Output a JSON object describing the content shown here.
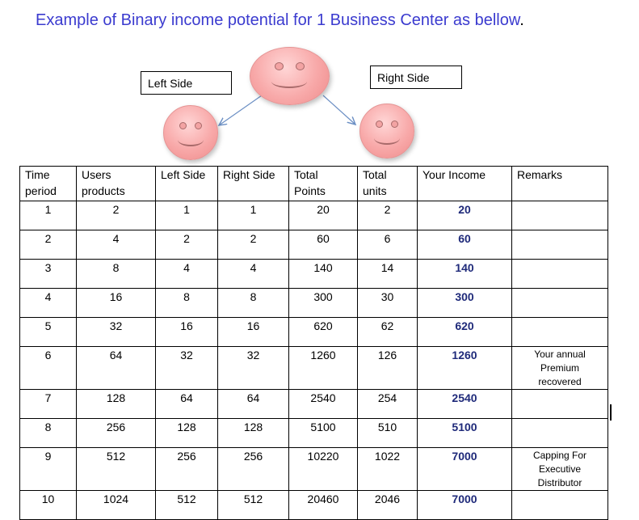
{
  "title": {
    "text": "Example of Binary income potential for 1 Business Center as bellow",
    "dot": "."
  },
  "diagram": {
    "left_label": "Left Side",
    "right_label": "Right Side"
  },
  "table": {
    "headers": {
      "time_period_1": "Time",
      "time_period_2": "period",
      "users_products_1": "Users",
      "users_products_2": "products",
      "left_side": "Left Side",
      "right_side": "Right Side",
      "total_points_1": "Total",
      "total_points_2": "Points",
      "total_units_1": "Total",
      "total_units_2": "units",
      "your_income": "Your Income",
      "remarks": "Remarks"
    },
    "rows": [
      {
        "period": "1",
        "users": "2",
        "left": "1",
        "right": "1",
        "points": "20",
        "units": "2",
        "income": "20",
        "remark_1": "",
        "remark_2": "",
        "remark_3": ""
      },
      {
        "period": "2",
        "users": "4",
        "left": "2",
        "right": "2",
        "points": "60",
        "units": "6",
        "income": "60",
        "remark_1": "",
        "remark_2": "",
        "remark_3": ""
      },
      {
        "period": "3",
        "users": "8",
        "left": "4",
        "right": "4",
        "points": "140",
        "units": "14",
        "income": "140",
        "remark_1": "",
        "remark_2": "",
        "remark_3": ""
      },
      {
        "period": "4",
        "users": "16",
        "left": "8",
        "right": "8",
        "points": "300",
        "units": "30",
        "income": "300",
        "remark_1": "",
        "remark_2": "",
        "remark_3": ""
      },
      {
        "period": "5",
        "users": "32",
        "left": "16",
        "right": "16",
        "points": "620",
        "units": "62",
        "income": "620",
        "remark_1": "",
        "remark_2": "",
        "remark_3": ""
      },
      {
        "period": "6",
        "users": "64",
        "left": "32",
        "right": "32",
        "points": "1260",
        "units": "126",
        "income": "1260",
        "remark_1": "Your annual",
        "remark_2": "Premium",
        "remark_3": "recovered"
      },
      {
        "period": "7",
        "users": "128",
        "left": "64",
        "right": "64",
        "points": "2540",
        "units": "254",
        "income": "2540",
        "remark_1": "",
        "remark_2": "",
        "remark_3": ""
      },
      {
        "period": "8",
        "users": "256",
        "left": "128",
        "right": "128",
        "points": "5100",
        "units": "510",
        "income": "5100",
        "remark_1": "",
        "remark_2": "",
        "remark_3": ""
      },
      {
        "period": "9",
        "users": "512",
        "left": "256",
        "right": "256",
        "points": "10220",
        "units": "1022",
        "income": "7000",
        "remark_1": "Capping For",
        "remark_2": "Executive",
        "remark_3": "Distributor"
      },
      {
        "period": "10",
        "users": "1024",
        "left": "512",
        "right": "512",
        "points": "20460",
        "units": "2046",
        "income": "7000",
        "remark_1": "",
        "remark_2": "",
        "remark_3": ""
      }
    ]
  }
}
